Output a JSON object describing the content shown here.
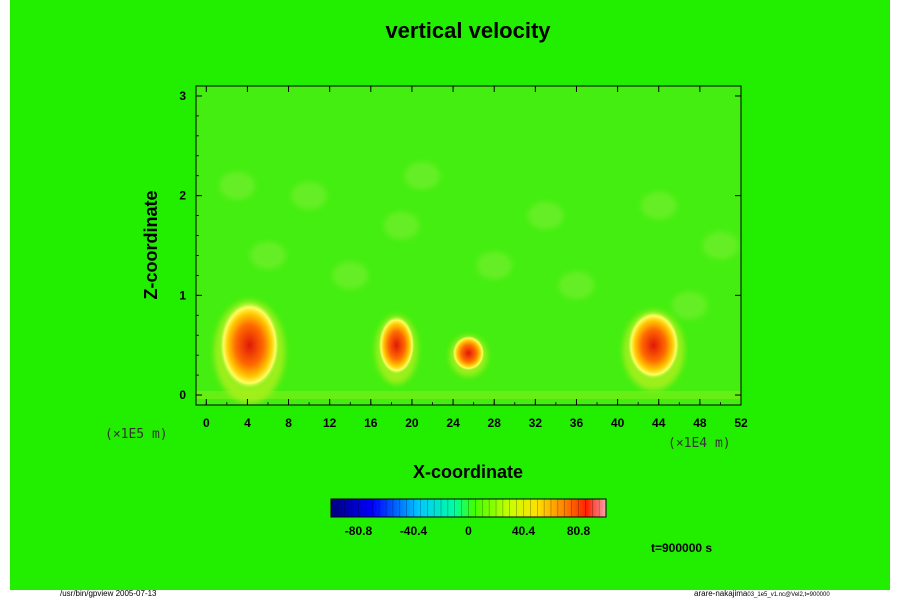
{
  "colors": {
    "background": "#22ee00",
    "zero_field": "#44ee10",
    "hot_core": "#e82008",
    "warm": "#ff8a00",
    "mild": "#ffe000"
  },
  "chart_data": {
    "type": "heatmap",
    "title": "vertical velocity",
    "xlabel": "X-coordinate",
    "ylabel": "Z-coordinate",
    "x_scale_note": "(×1E4 m)",
    "y_scale_note": "(×1E5 m)",
    "x_ticks": [
      "0",
      "4",
      "8",
      "12",
      "16",
      "20",
      "24",
      "28",
      "32",
      "36",
      "40",
      "44",
      "48",
      "52"
    ],
    "y_ticks": [
      "0",
      "1",
      "2",
      "3"
    ],
    "xlim": [
      -1,
      52
    ],
    "ylim": [
      -0.1,
      3.1
    ],
    "colorbar": {
      "ticks": [
        "-80.8",
        "-40.4",
        "0",
        "40.4",
        "80.8"
      ],
      "range": [
        -101,
        101
      ]
    },
    "time_label": "t=900000 s",
    "updrafts": [
      {
        "x": 4.2,
        "z": 0.5,
        "rx": 3.0,
        "rz": 0.45
      },
      {
        "x": 18.5,
        "z": 0.5,
        "rx": 1.8,
        "rz": 0.3
      },
      {
        "x": 25.5,
        "z": 0.42,
        "rx": 1.6,
        "rz": 0.18
      },
      {
        "x": 43.5,
        "z": 0.5,
        "rx": 2.6,
        "rz": 0.35
      }
    ]
  },
  "footer": {
    "left": "/usr/bin/gpview 2005-07-13",
    "right": "arare-nakajima",
    "right_small": "03_1e5_v1.nc@Vel2,t=900000"
  }
}
